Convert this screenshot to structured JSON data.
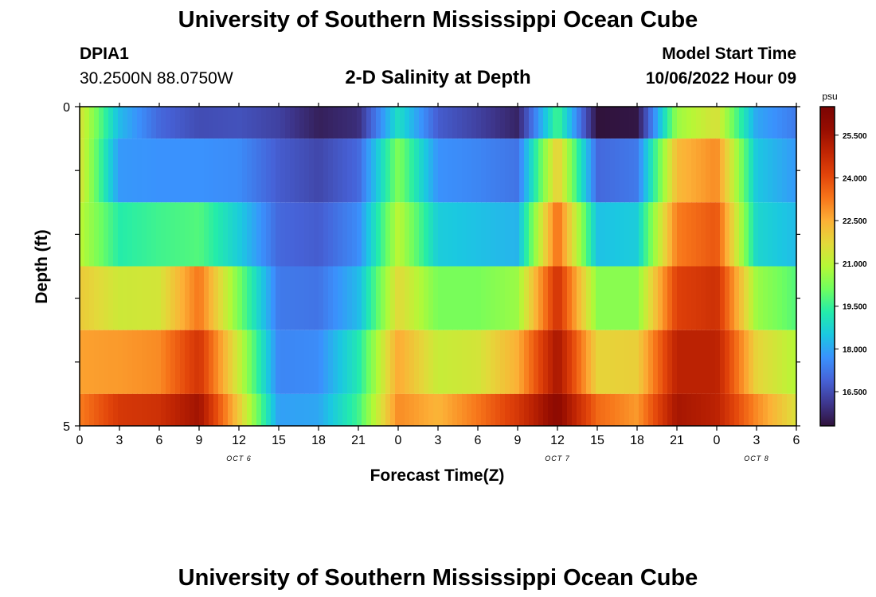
{
  "header": {
    "title": "University of Southern Mississippi Ocean Cube",
    "station_id": "DPIA1",
    "coordinates": "30.2500N  88.0750W",
    "chart_title": "2-D Salinity at Depth",
    "model_start_label": "Model Start Time",
    "model_start_value": "10/06/2022 Hour 09"
  },
  "footer": {
    "title": "University of Southern Mississippi Ocean Cube"
  },
  "chart_data": {
    "type": "heatmap",
    "title": "2-D Salinity at Depth",
    "xlabel": "Forecast Time(Z)",
    "ylabel": "Depth (ft)",
    "y_tick_labels": [
      "0",
      "5"
    ],
    "ylim": [
      0,
      5
    ],
    "x_tick_labels": [
      "0",
      "3",
      "6",
      "9",
      "12",
      "15",
      "18",
      "21",
      "0",
      "3",
      "6",
      "9",
      "12",
      "15",
      "18",
      "21",
      "0",
      "3",
      "6"
    ],
    "date_labels": [
      {
        "label": "OCT 6",
        "at_tick": 4
      },
      {
        "label": "OCT 7",
        "at_tick": 12
      },
      {
        "label": "OCT 8",
        "at_tick": 17
      }
    ],
    "colorbar": {
      "unit": "psu",
      "ticks": [
        "16.500",
        "18.000",
        "19.500",
        "21.000",
        "22.500",
        "24.000",
        "25.500"
      ],
      "range": [
        15.3,
        26.5
      ],
      "colors": [
        "#30123b",
        "#3e378f",
        "#4662d7",
        "#3a92fd",
        "#1bc8e1",
        "#24ecaa",
        "#6ffe5f",
        "#b5f836",
        "#e3d93a",
        "#fcb036",
        "#f7751a",
        "#e2440a",
        "#c02503",
        "#960d01",
        "#7a0403"
      ]
    },
    "depth_rows": [
      "0.0-0.5 ft",
      "0.5-1.5 ft",
      "1.5-2.5 ft",
      "2.5-3.5 ft",
      "3.5-4.5 ft",
      "4.5-5.0 ft"
    ],
    "time_hours": [
      0,
      3,
      6,
      9,
      12,
      15,
      18,
      21,
      24,
      27,
      30,
      33,
      36,
      39,
      42,
      45,
      48,
      51,
      54
    ],
    "salinity": [
      [
        21.5,
        18.3,
        17.0,
        16.5,
        16.6,
        16.3,
        15.6,
        15.9,
        19.0,
        16.8,
        16.3,
        15.7,
        19.7,
        15.3,
        15.4,
        20.6,
        21.5,
        18.0,
        17.3
      ],
      [
        21.5,
        17.8,
        17.7,
        17.7,
        17.6,
        16.8,
        16.4,
        17.0,
        20.3,
        17.7,
        17.5,
        17.2,
        22.0,
        17.0,
        17.3,
        22.3,
        23.0,
        18.5,
        17.8
      ],
      [
        21.0,
        19.3,
        19.6,
        19.8,
        18.6,
        17.0,
        16.8,
        17.6,
        21.0,
        18.6,
        18.4,
        18.2,
        23.5,
        18.4,
        18.6,
        23.2,
        23.8,
        18.8,
        18.3
      ],
      [
        22.0,
        21.3,
        21.4,
        23.3,
        20.2,
        17.3,
        17.2,
        18.3,
        21.7,
        20.2,
        20.2,
        20.6,
        24.6,
        20.4,
        20.4,
        24.2,
        24.6,
        20.6,
        19.8
      ],
      [
        22.7,
        22.8,
        23.0,
        24.5,
        21.2,
        17.5,
        17.6,
        19.2,
        22.6,
        21.2,
        21.4,
        22.5,
        25.4,
        21.8,
        21.9,
        25.0,
        25.0,
        21.8,
        20.9
      ],
      [
        23.2,
        24.4,
        24.6,
        25.5,
        22.0,
        17.9,
        18.0,
        19.6,
        23.0,
        22.4,
        23.3,
        24.4,
        26.0,
        23.5,
        22.8,
        25.4,
        25.0,
        23.0,
        21.5
      ]
    ]
  }
}
